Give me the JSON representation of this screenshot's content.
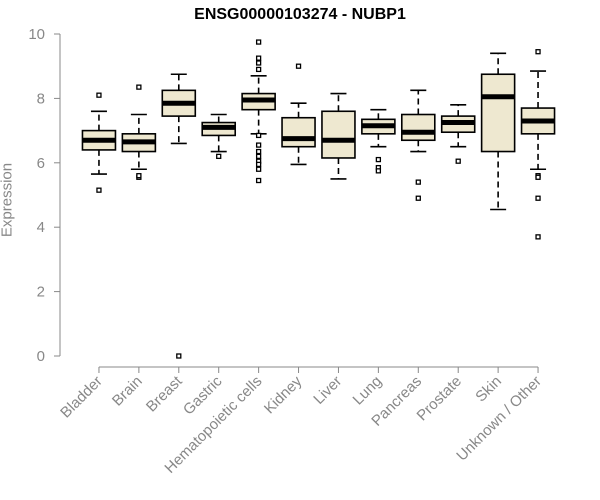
{
  "chart_data": {
    "type": "box",
    "title": "ENSG00000103274 - NUBP1",
    "xlabel": "",
    "ylabel": "Expression",
    "ylim": [
      0,
      10
    ],
    "yticks": [
      "0",
      "2",
      "4",
      "6",
      "8",
      "10"
    ],
    "grid": false,
    "box_fill": "#EEE8D0",
    "categories": [
      "Bladder",
      "Brain",
      "Breast",
      "Gastric",
      "Hematopoietic cells",
      "Kidney",
      "Liver",
      "Lung",
      "Pancreas",
      "Prostate",
      "Skin",
      "Unknown / Other"
    ],
    "boxes": [
      {
        "q1": 6.4,
        "median": 6.7,
        "q3": 7.0,
        "whisker_low": 5.65,
        "whisker_high": 7.6,
        "outliers": [
          8.1,
          5.15
        ]
      },
      {
        "q1": 6.35,
        "median": 6.65,
        "q3": 6.9,
        "whisker_low": 5.8,
        "whisker_high": 7.5,
        "outliers": [
          8.35,
          5.55,
          5.6
        ]
      },
      {
        "q1": 7.45,
        "median": 7.85,
        "q3": 8.25,
        "whisker_low": 6.6,
        "whisker_high": 8.75,
        "outliers": [
          0.0
        ]
      },
      {
        "q1": 6.85,
        "median": 7.1,
        "q3": 7.25,
        "whisker_low": 6.35,
        "whisker_high": 7.5,
        "outliers": [
          6.2
        ]
      },
      {
        "q1": 7.65,
        "median": 7.95,
        "q3": 8.15,
        "whisker_low": 6.9,
        "whisker_high": 8.7,
        "outliers": [
          9.75,
          9.25,
          9.1,
          8.9,
          6.85,
          6.55,
          6.35,
          6.2,
          6.05,
          5.95,
          5.8,
          5.45
        ]
      },
      {
        "q1": 6.5,
        "median": 6.75,
        "q3": 7.4,
        "whisker_low": 5.95,
        "whisker_high": 7.85,
        "outliers": [
          9.0
        ]
      },
      {
        "q1": 6.15,
        "median": 6.7,
        "q3": 7.6,
        "whisker_low": 5.5,
        "whisker_high": 8.15,
        "outliers": []
      },
      {
        "q1": 6.9,
        "median": 7.15,
        "q3": 7.35,
        "whisker_low": 6.5,
        "whisker_high": 7.65,
        "outliers": [
          6.1,
          5.85,
          5.75
        ]
      },
      {
        "q1": 6.7,
        "median": 6.95,
        "q3": 7.5,
        "whisker_low": 6.35,
        "whisker_high": 8.25,
        "outliers": [
          5.4,
          4.9
        ]
      },
      {
        "q1": 6.95,
        "median": 7.25,
        "q3": 7.45,
        "whisker_low": 6.5,
        "whisker_high": 7.8,
        "outliers": [
          6.05
        ]
      },
      {
        "q1": 6.35,
        "median": 8.05,
        "q3": 8.75,
        "whisker_low": 4.55,
        "whisker_high": 9.4,
        "outliers": []
      },
      {
        "q1": 6.9,
        "median": 7.3,
        "q3": 7.7,
        "whisker_low": 5.8,
        "whisker_high": 8.85,
        "outliers": [
          9.45,
          5.6,
          5.55,
          4.9,
          3.7
        ]
      }
    ]
  }
}
